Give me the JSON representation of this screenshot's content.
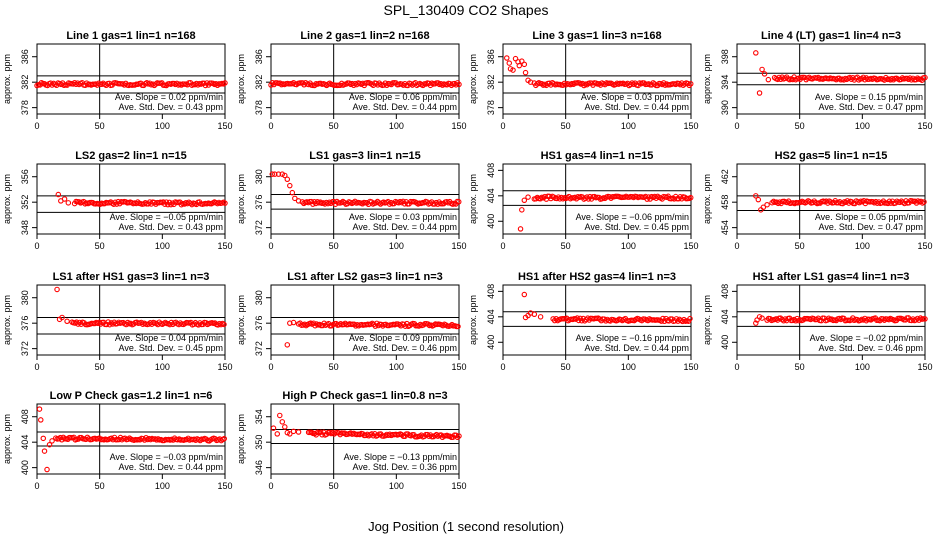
{
  "figure": {
    "title": "SPL_130409  CO2 Shapes",
    "xlabel": "Jog Position (1 second resolution)"
  },
  "colors": {
    "points": "#ff0000",
    "axes": "#000000"
  },
  "chart_data": [
    {
      "type": "scatter",
      "title": "Line 1 gas=1 lin=1 n=168",
      "ylabel": "approx. ppm",
      "xlim": [
        0,
        150
      ],
      "ylim": [
        377,
        388
      ],
      "xticks": [
        0,
        50,
        100,
        150
      ],
      "yticks": [
        378,
        382,
        386
      ],
      "hlines": [
        383,
        380.3
      ],
      "vline": 50,
      "slope": "Ave. Slope = 0.02  ppm/min",
      "stddev": "Ave. Std. Dev. = 0.43  ppm",
      "series": [
        {
          "x": [
            0,
            150
          ],
          "y": [
            381.7,
            381.7
          ]
        }
      ]
    },
    {
      "type": "scatter",
      "title": "Line 2 gas=1 lin=2 n=168",
      "ylabel": "approx. ppm",
      "xlim": [
        0,
        150
      ],
      "ylim": [
        377,
        388
      ],
      "xticks": [
        0,
        50,
        100,
        150
      ],
      "yticks": [
        378,
        382,
        386
      ],
      "hlines": [
        383,
        380.3
      ],
      "vline": 50,
      "slope": "Ave. Slope = 0.06  ppm/min",
      "stddev": "Ave. Std. Dev. = 0.44  ppm",
      "series": [
        {
          "x": [
            0,
            150
          ],
          "y": [
            381.7,
            381.7
          ]
        }
      ]
    },
    {
      "type": "scatter",
      "title": "Line 3 gas=1 lin=3 n=168",
      "ylabel": "approx. ppm",
      "xlim": [
        0,
        150
      ],
      "ylim": [
        377,
        388
      ],
      "xticks": [
        0,
        50,
        100,
        150
      ],
      "yticks": [
        378,
        382,
        386
      ],
      "hlines": [
        383,
        380.3
      ],
      "vline": 50,
      "slope": "Ave. Slope = 0.03  ppm/min",
      "stddev": "Ave. Std. Dev. = 0.44  ppm",
      "series": [
        {
          "x": [
            3,
            5,
            6,
            8,
            10,
            12,
            13,
            15,
            17,
            18,
            20,
            22,
            25,
            150
          ],
          "y": [
            385.8,
            385,
            384.1,
            383.9,
            385.7,
            385.2,
            384.6,
            385.3,
            384.8,
            383.5,
            382.3,
            382,
            381.7,
            381.7
          ]
        }
      ]
    },
    {
      "type": "scatter",
      "title": "Line 4 (LT) gas=1 lin=4 n=3",
      "ylabel": "approx. ppm",
      "xlim": [
        0,
        150
      ],
      "ylim": [
        389,
        400
      ],
      "xticks": [
        0,
        50,
        100,
        150
      ],
      "yticks": [
        390,
        394,
        398
      ],
      "hlines": [
        395.4,
        393.6
      ],
      "vline": 50,
      "slope": "Ave. Slope = 0.15  ppm/min",
      "stddev": "Ave. Std. Dev. = 0.47  ppm",
      "series": [
        {
          "x": [
            15,
            18,
            20,
            22,
            25,
            30,
            150
          ],
          "y": [
            398.6,
            392.3,
            396,
            395.3,
            394.4,
            394.6,
            394.5
          ]
        }
      ]
    },
    {
      "type": "scatter",
      "title": "LS2 gas=2 lin=1 n=15",
      "ylabel": "approx. ppm",
      "xlim": [
        0,
        150
      ],
      "ylim": [
        347,
        358
      ],
      "xticks": [
        0,
        50,
        100,
        150
      ],
      "yticks": [
        348,
        352,
        356
      ],
      "hlines": [
        353,
        350.4
      ],
      "vline": 50,
      "slope": "Ave. Slope = −0.05  ppm/min",
      "stddev": "Ave. Std. Dev. = 0.43  ppm",
      "series": [
        {
          "x": [
            17,
            19,
            22,
            25,
            30,
            150
          ],
          "y": [
            353.2,
            352.2,
            352.5,
            351.9,
            351.9,
            351.8
          ]
        }
      ]
    },
    {
      "type": "scatter",
      "title": "LS1 gas=3 lin=1 n=15",
      "ylabel": "approx. ppm",
      "xlim": [
        0,
        150
      ],
      "ylim": [
        371,
        382
      ],
      "xticks": [
        0,
        50,
        100,
        150
      ],
      "yticks": [
        372,
        376,
        380
      ],
      "hlines": [
        377.2,
        374.9
      ],
      "vline": 50,
      "slope": "Ave. Slope = 0.03  ppm/min",
      "stddev": "Ave. Std. Dev. = 0.44  ppm",
      "series": [
        {
          "x": [
            1,
            3,
            6,
            9,
            11,
            13,
            15,
            17,
            19,
            22,
            25,
            150
          ],
          "y": [
            380.4,
            380.4,
            380.4,
            380.4,
            380.2,
            379.6,
            378.6,
            377.5,
            376.6,
            376.2,
            375.9,
            375.9
          ]
        }
      ]
    },
    {
      "type": "scatter",
      "title": "HS1 gas=4 lin=1 n=15",
      "ylabel": "approx. ppm",
      "xlim": [
        0,
        150
      ],
      "ylim": [
        398,
        409
      ],
      "xticks": [
        0,
        50,
        100,
        150
      ],
      "yticks": [
        400,
        404,
        408
      ],
      "hlines": [
        404.8,
        402.5
      ],
      "vline": 50,
      "slope": "Ave. Slope = −0.06  ppm/min",
      "stddev": "Ave. Std. Dev. = 0.45  ppm",
      "series": [
        {
          "x": [
            14,
            15,
            17,
            20,
            25,
            150
          ],
          "y": [
            398.8,
            401.8,
            403.3,
            403.8,
            403.7,
            403.7
          ]
        }
      ]
    },
    {
      "type": "scatter",
      "title": "HS2 gas=5 lin=1 n=15",
      "ylabel": "approx. ppm",
      "xlim": [
        0,
        150
      ],
      "ylim": [
        453,
        464
      ],
      "xticks": [
        0,
        50,
        100,
        150
      ],
      "yticks": [
        454,
        458,
        462
      ],
      "hlines": [
        459,
        456.7
      ],
      "vline": 50,
      "slope": "Ave. Slope = 0.05  ppm/min",
      "stddev": "Ave. Std. Dev. = 0.47  ppm",
      "series": [
        {
          "x": [
            15,
            17,
            19,
            21,
            24,
            28,
            150
          ],
          "y": [
            459,
            458.4,
            456.8,
            457.2,
            457.6,
            458,
            458
          ]
        }
      ]
    },
    {
      "type": "scatter",
      "title": "LS1 after HS1 gas=3 lin=1 n=3",
      "ylabel": "approx. ppm",
      "xlim": [
        0,
        150
      ],
      "ylim": [
        371,
        382
      ],
      "xticks": [
        0,
        50,
        100,
        150
      ],
      "yticks": [
        372,
        376,
        380
      ],
      "hlines": [
        376.9,
        374.3
      ],
      "vline": 50,
      "slope": "Ave. Slope = 0.04  ppm/min",
      "stddev": "Ave. Std. Dev. = 0.45  ppm",
      "series": [
        {
          "x": [
            16,
            18,
            20,
            24,
            28,
            150
          ],
          "y": [
            381.3,
            376.6,
            376.9,
            376.3,
            376,
            375.9
          ]
        }
      ]
    },
    {
      "type": "scatter",
      "title": "LS1 after LS2 gas=3 lin=1 n=3",
      "ylabel": "approx. ppm",
      "xlim": [
        0,
        150
      ],
      "ylim": [
        371,
        382
      ],
      "xticks": [
        0,
        50,
        100,
        150
      ],
      "yticks": [
        372,
        376,
        380
      ],
      "hlines": [
        376.9,
        374.3
      ],
      "vline": 50,
      "slope": "Ave. Slope = 0.09  ppm/min",
      "stddev": "Ave. Std. Dev. = 0.46  ppm",
      "series": [
        {
          "x": [
            13,
            15,
            18,
            22,
            150
          ],
          "y": [
            372.6,
            376,
            376.1,
            375.8,
            375.7
          ]
        }
      ]
    },
    {
      "type": "scatter",
      "title": "HS1 after HS2 gas=4 lin=1 n=3",
      "ylabel": "approx. ppm",
      "xlim": [
        0,
        150
      ],
      "ylim": [
        398,
        409
      ],
      "xticks": [
        0,
        50,
        100,
        150
      ],
      "yticks": [
        400,
        404,
        408
      ],
      "hlines": [
        404.8,
        402.5
      ],
      "vline": 50,
      "slope": "Ave. Slope = −0.16  ppm/min",
      "stddev": "Ave. Std. Dev. = 0.44  ppm",
      "series": [
        {
          "x": [
            17,
            18,
            20,
            22,
            25,
            30,
            40,
            150
          ],
          "y": [
            407.5,
            403.9,
            404.2,
            404.6,
            404.4,
            404,
            403.6,
            403.5
          ]
        }
      ]
    },
    {
      "type": "scatter",
      "title": "HS1 after LS1 gas=4 lin=1 n=3",
      "ylabel": "approx. ppm",
      "xlim": [
        0,
        150
      ],
      "ylim": [
        398,
        409
      ],
      "xticks": [
        0,
        50,
        100,
        150
      ],
      "yticks": [
        400,
        404,
        408
      ],
      "hlines": [
        404.8,
        402.5
      ],
      "vline": 50,
      "slope": "Ave. Slope = −0.02  ppm/min",
      "stddev": "Ave. Std. Dev. = 0.46  ppm",
      "series": [
        {
          "x": [
            15,
            16,
            18,
            20,
            24,
            150
          ],
          "y": [
            403,
            403.5,
            404,
            403.8,
            403.6,
            403.6
          ]
        }
      ]
    },
    {
      "type": "scatter",
      "title": "Low P Check gas=1.2 lin=1 n=6",
      "ylabel": "approx. ppm",
      "xlim": [
        0,
        150
      ],
      "ylim": [
        399,
        410
      ],
      "xticks": [
        0,
        50,
        100,
        150
      ],
      "yticks": [
        400,
        404,
        408
      ],
      "hlines": [
        405.6,
        403.4
      ],
      "vline": 50,
      "slope": "Ave. Slope = −0.03  ppm/min",
      "stddev": "Ave. Std. Dev. = 0.44  ppm",
      "series": [
        {
          "x": [
            2,
            3,
            5,
            6,
            8,
            10,
            12,
            15,
            150
          ],
          "y": [
            409.2,
            407.5,
            404.6,
            402.6,
            399.7,
            403.6,
            404.2,
            404.6,
            404.4
          ]
        }
      ]
    },
    {
      "type": "scatter",
      "title": "High P Check gas=1 lin=0.8 n=3",
      "ylabel": "approx. ppm",
      "xlim": [
        0,
        150
      ],
      "ylim": [
        345,
        356
      ],
      "xticks": [
        0,
        50,
        100,
        150
      ],
      "yticks": [
        346,
        350,
        354
      ],
      "hlines": [
        352,
        349.8
      ],
      "vline": 50,
      "slope": "Ave. Slope = −0.13  ppm/min",
      "stddev": "Ave. Std. Dev. = 0.36  ppm",
      "series": [
        {
          "x": [
            2,
            5,
            7,
            9,
            11,
            13,
            15,
            18,
            22,
            30,
            150
          ],
          "y": [
            352.2,
            351.3,
            354.2,
            353.2,
            352.4,
            351.5,
            351.3,
            351.7,
            351.6,
            351.4,
            350.9
          ]
        }
      ]
    }
  ]
}
